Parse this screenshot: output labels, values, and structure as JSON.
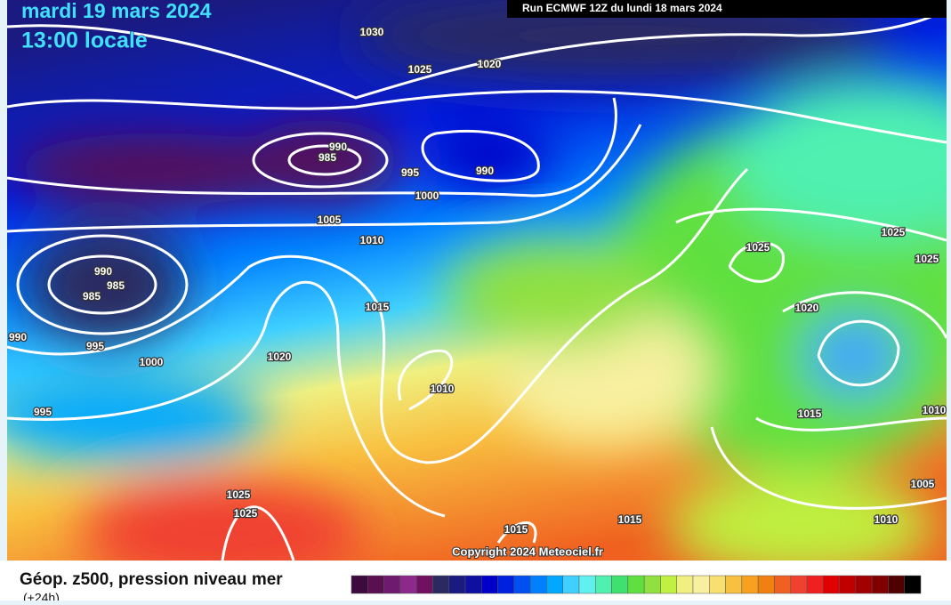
{
  "header": {
    "date": "mardi 19 mars 2024",
    "time": "13:00 locale",
    "run": "Run ECMWF 12Z du lundi 18 mars 2024"
  },
  "map": {
    "copyright": "Copyright 2024 Meteociel.fr",
    "isobar_labels": [
      "1030",
      "1025",
      "1020",
      "990",
      "985",
      "995",
      "990",
      "1000",
      "1005",
      "1010",
      "990",
      "985",
      "985",
      "990",
      "995",
      "1000",
      "1015",
      "1020",
      "1010",
      "995",
      "1025",
      "1025",
      "1015",
      "1015",
      "1025",
      "1025",
      "1025",
      "1020",
      "1015",
      "1010",
      "1005",
      "1010"
    ]
  },
  "legend": {
    "title": "Géop. z500, pression niveau mer",
    "subtitle": "(+24h)",
    "colors": [
      "#3c0a3c",
      "#5a1050",
      "#6e1a6e",
      "#8c2a8c",
      "#701060",
      "#2a2a60",
      "#1a1a80",
      "#1010a0",
      "#0000c8",
      "#0020e0",
      "#0050f0",
      "#0080ff",
      "#00a8ff",
      "#40d0ff",
      "#60f0f0",
      "#50f0b0",
      "#40e070",
      "#60e040",
      "#90e040",
      "#c0f040",
      "#f0f080",
      "#f8f0a0",
      "#f8e070",
      "#f8c040",
      "#f8a020",
      "#f08010",
      "#f06020",
      "#f04030",
      "#f02020",
      "#e00000",
      "#c00000",
      "#a00000",
      "#800000",
      "#500000",
      "#000000"
    ]
  }
}
